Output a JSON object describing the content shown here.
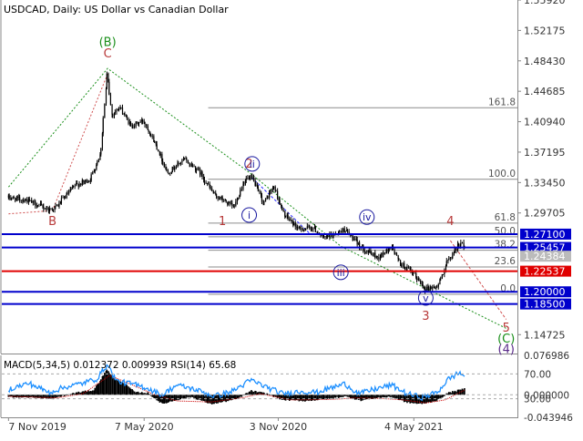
{
  "chart_data": [
    {
      "type": "candlestick",
      "title": "USDCAD, Daily:  US Dollar vs Canadian Dollar",
      "price_axis_ticks": [
        "1.55920",
        "1.52175",
        "1.48430",
        "1.44685",
        "1.40940",
        "1.37195",
        "1.33450",
        "1.29705",
        "1.14725"
      ],
      "date_axis_ticks": [
        "7 Nov 2019",
        "7 May 2020",
        "3 Nov 2020",
        "4 May 2021"
      ],
      "price_path": [
        [
          "2019-11-07",
          1.316
        ],
        [
          "2019-12-01",
          1.313
        ],
        [
          "2020-01-01",
          1.301
        ],
        [
          "2020-01-10",
          1.304
        ],
        [
          "2020-02-05",
          1.331
        ],
        [
          "2020-02-25",
          1.338
        ],
        [
          "2020-03-10",
          1.37
        ],
        [
          "2020-03-19",
          1.469
        ],
        [
          "2020-03-25",
          1.418
        ],
        [
          "2020-04-05",
          1.427
        ],
        [
          "2020-04-20",
          1.404
        ],
        [
          "2020-05-07",
          1.411
        ],
        [
          "2020-05-25",
          1.378
        ],
        [
          "2020-06-08",
          1.346
        ],
        [
          "2020-06-30",
          1.363
        ],
        [
          "2020-07-20",
          1.349
        ],
        [
          "2020-08-10",
          1.319
        ],
        [
          "2020-08-20",
          1.314
        ],
        [
          "2020-09-05",
          1.304
        ],
        [
          "2020-09-20",
          1.339
        ],
        [
          "2020-09-30",
          1.339
        ],
        [
          "2020-10-15",
          1.309
        ],
        [
          "2020-10-29",
          1.33
        ],
        [
          "2020-11-10",
          1.297
        ],
        [
          "2020-12-01",
          1.277
        ],
        [
          "2020-12-20",
          1.279
        ],
        [
          "2021-01-04",
          1.266
        ],
        [
          "2021-01-20",
          1.272
        ],
        [
          "2021-02-01",
          1.277
        ],
        [
          "2021-02-15",
          1.262
        ],
        [
          "2021-03-01",
          1.251
        ],
        [
          "2021-03-18",
          1.242
        ],
        [
          "2021-04-05",
          1.256
        ],
        [
          "2021-04-15",
          1.236
        ],
        [
          "2021-05-04",
          1.222
        ],
        [
          "2021-05-20",
          1.204
        ],
        [
          "2021-06-05",
          1.206
        ],
        [
          "2021-06-18",
          1.236
        ],
        [
          "2021-07-05",
          1.26
        ],
        [
          "2021-07-12",
          1.256
        ]
      ],
      "levels": [
        {
          "label": "1.27100",
          "value": 1.271,
          "color": "#0000cc"
        },
        {
          "label": "1.25457",
          "value": 1.2546,
          "color": "#0000cc"
        },
        {
          "label": "1.24384",
          "value": 1.2438,
          "color": "#bbbbbb"
        },
        {
          "label": "1.22537",
          "value": 1.2254,
          "color": "#e00000"
        },
        {
          "label": "1.20000",
          "value": 1.2,
          "color": "#0000cc"
        },
        {
          "label": "1.18500",
          "value": 1.185,
          "color": "#0000cc"
        }
      ],
      "fibonacci": [
        {
          "label": "161.8",
          "value": 1.4265
        },
        {
          "label": "100.0",
          "value": 1.3385
        },
        {
          "label": "61.8",
          "value": 1.2846
        },
        {
          "label": "50.0",
          "value": 1.2677
        },
        {
          "label": "38.2",
          "value": 1.2511
        },
        {
          "label": "23.6",
          "value": 1.2305
        },
        {
          "label": "0.0",
          "value": 1.1969
        }
      ],
      "wave_labels": [
        {
          "text": "(B)",
          "date": "2020-03-19",
          "price": 1.5025,
          "color": "#1a8f1a"
        },
        {
          "text": "C",
          "date": "2020-03-19",
          "price": 1.4885,
          "color": "#b83a3a"
        },
        {
          "text": "B",
          "date": "2020-01-05",
          "price": 1.282,
          "color": "#b83a3a"
        },
        {
          "text": "1",
          "date": "2020-08-20",
          "price": 1.282,
          "color": "#b83a3a"
        },
        {
          "text": "2",
          "date": "2020-09-25",
          "price": 1.353,
          "color": "#b83a3a"
        },
        {
          "text": "ii",
          "date": "2020-09-29",
          "price": 1.353,
          "color": "#1a1aa0",
          "circled": true
        },
        {
          "text": "i",
          "date": "2020-09-25",
          "price": 1.29,
          "color": "#1a1aa0",
          "circled": true
        },
        {
          "text": "iii",
          "date": "2021-01-26",
          "price": 1.2195,
          "color": "#1a1aa0",
          "circled": true
        },
        {
          "text": "iv",
          "date": "2021-03-02",
          "price": 1.2875,
          "color": "#1a1aa0",
          "circled": true
        },
        {
          "text": "4",
          "date": "2021-06-22",
          "price": 1.282,
          "color": "#b83a3a"
        },
        {
          "text": "v",
          "date": "2021-05-20",
          "price": 1.188,
          "color": "#1a1aa0",
          "circled": true
        },
        {
          "text": "3",
          "date": "2021-05-20",
          "price": 1.1655,
          "color": "#b83a3a"
        },
        {
          "text": "5",
          "date": "2021-09-05",
          "price": 1.151,
          "color": "#b83a3a"
        },
        {
          "text": "(C)",
          "date": "2021-09-05",
          "price": 1.1375,
          "color": "#1a8f1a"
        },
        {
          "text": "(4)",
          "date": "2021-09-05",
          "price": 1.1245,
          "color": "#5a2a8a"
        }
      ],
      "wave_lines": [
        {
          "color": "#d05050",
          "dash": "2,2",
          "points": [
            [
              "2019-11-07",
              1.296
            ],
            [
              "2020-01-05",
              1.3
            ],
            [
              "2020-03-19",
              1.468
            ]
          ]
        },
        {
          "color": "#1a8f1a",
          "dash": "2,2",
          "points": [
            [
              "2019-11-07",
              1.329
            ],
            [
              "2020-03-19",
              1.475
            ],
            [
              "2020-09-25",
              1.347
            ],
            [
              "2021-01-26",
              1.256
            ],
            [
              "2021-09-05",
              1.155
            ]
          ]
        },
        {
          "color": "#2a2aff",
          "dash": "3,2",
          "points": [
            [
              "2020-09-28",
              1.341
            ],
            [
              "2020-12-15",
              1.272
            ]
          ]
        },
        {
          "color": "#d05050",
          "dash": "3,2",
          "points": [
            [
              "2021-06-22",
              1.263
            ],
            [
              "2021-09-05",
              1.166
            ]
          ]
        }
      ],
      "price_range": [
        1.124,
        1.5592
      ],
      "date_range": [
        "2019-10-29",
        "2021-09-20"
      ]
    },
    {
      "type": "bar",
      "title": "MACD(5,34,5) 0.012372 0.009939 RSI(14) 65.68",
      "axis_ticks": [
        "0.076986",
        "70.00",
        "0.000000",
        "30.00",
        "-0.043946"
      ],
      "macd": [
        [
          "2019-11-07",
          -0.004
        ],
        [
          "2019-12-10",
          -0.005
        ],
        [
          "2020-01-05",
          -0.008
        ],
        [
          "2020-02-05",
          0.004
        ],
        [
          "2020-03-01",
          0.009
        ],
        [
          "2020-03-19",
          0.05
        ],
        [
          "2020-03-28",
          0.032
        ],
        [
          "2020-04-10",
          0.024
        ],
        [
          "2020-04-25",
          0.005
        ],
        [
          "2020-05-12",
          0.004
        ],
        [
          "2020-06-01",
          -0.018
        ],
        [
          "2020-06-20",
          -0.01
        ],
        [
          "2020-07-10",
          -0.004
        ],
        [
          "2020-08-05",
          -0.018
        ],
        [
          "2020-08-25",
          -0.013
        ],
        [
          "2020-09-10",
          -0.008
        ],
        [
          "2020-09-28",
          0.008
        ],
        [
          "2020-10-20",
          0.002
        ],
        [
          "2020-11-10",
          -0.01
        ],
        [
          "2020-12-10",
          -0.012
        ],
        [
          "2021-01-10",
          -0.008
        ],
        [
          "2021-02-01",
          -0.003
        ],
        [
          "2021-02-22",
          -0.011
        ],
        [
          "2021-03-15",
          -0.006
        ],
        [
          "2021-04-05",
          -0.004
        ],
        [
          "2021-04-25",
          -0.015
        ],
        [
          "2021-05-15",
          -0.018
        ],
        [
          "2021-06-05",
          -0.011
        ],
        [
          "2021-06-20",
          0.004
        ],
        [
          "2021-07-12",
          0.012
        ]
      ],
      "signal": [
        [
          "2019-11-07",
          -0.003
        ],
        [
          "2020-01-10",
          -0.006
        ],
        [
          "2020-02-15",
          0.002
        ],
        [
          "2020-03-22",
          0.038
        ],
        [
          "2020-04-20",
          0.02
        ],
        [
          "2020-05-20",
          0.001
        ],
        [
          "2020-06-20",
          -0.012
        ],
        [
          "2020-08-05",
          -0.014
        ],
        [
          "2020-09-15",
          -0.006
        ],
        [
          "2020-10-10",
          0.002
        ],
        [
          "2020-11-20",
          -0.01
        ],
        [
          "2021-01-15",
          -0.009
        ],
        [
          "2021-02-15",
          -0.006
        ],
        [
          "2021-03-20",
          -0.007
        ],
        [
          "2021-04-20",
          -0.01
        ],
        [
          "2021-05-20",
          -0.016
        ],
        [
          "2021-06-15",
          -0.01
        ],
        [
          "2021-07-12",
          0.0099
        ]
      ],
      "rsi": [
        [
          "2019-11-07",
          45
        ],
        [
          "2019-12-05",
          55
        ],
        [
          "2020-01-01",
          40
        ],
        [
          "2020-01-20",
          48
        ],
        [
          "2020-02-15",
          55
        ],
        [
          "2020-03-05",
          62
        ],
        [
          "2020-03-19",
          85
        ],
        [
          "2020-04-01",
          58
        ],
        [
          "2020-04-20",
          54
        ],
        [
          "2020-05-10",
          48
        ],
        [
          "2020-06-01",
          36
        ],
        [
          "2020-06-20",
          52
        ],
        [
          "2020-07-15",
          45
        ],
        [
          "2020-08-10",
          34
        ],
        [
          "2020-09-01",
          41
        ],
        [
          "2020-09-28",
          60
        ],
        [
          "2020-10-20",
          48
        ],
        [
          "2020-11-10",
          38
        ],
        [
          "2020-12-05",
          42
        ],
        [
          "2020-12-25",
          40
        ],
        [
          "2021-01-15",
          48
        ],
        [
          "2021-02-01",
          54
        ],
        [
          "2021-02-20",
          38
        ],
        [
          "2021-03-15",
          46
        ],
        [
          "2021-04-05",
          52
        ],
        [
          "2021-04-25",
          38
        ],
        [
          "2021-05-15",
          32
        ],
        [
          "2021-06-05",
          40
        ],
        [
          "2021-06-20",
          62
        ],
        [
          "2021-07-05",
          72
        ],
        [
          "2021-07-12",
          65.68
        ]
      ],
      "macd_range": [
        -0.043946,
        0.076986
      ],
      "rsi_range": [
        0,
        100
      ]
    }
  ]
}
